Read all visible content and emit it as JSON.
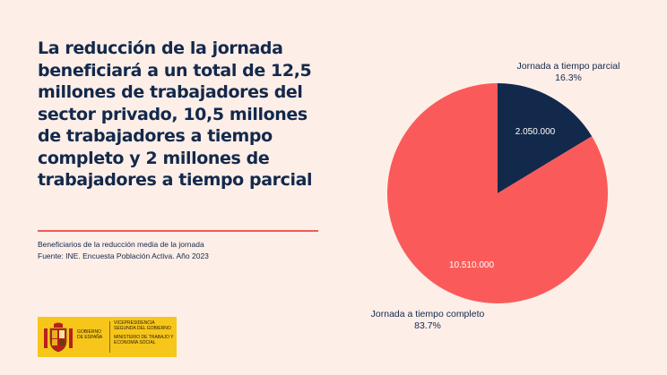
{
  "headline": "La reducción de la jornada beneficiará a un total de 12,5 millones de trabajadores del sector privado, 10,5 millones de trabajadores a tiempo completo y 2 millones de trabajadores a tiempo parcial",
  "source": {
    "line1": "Beneficiarios de la reducción media de la jornada",
    "line2": "Fuente: INE. Encuesta Población Activa. Año 2023"
  },
  "logo": {
    "government": "GOBIERNO DE ESPAÑA",
    "ministry_line1": "VICEPRESIDENCIA SEGUNDA DEL GOBIERNO",
    "ministry_line2": "MINISTERIO DE TRABAJO Y ECONOMÍA SOCIAL"
  },
  "colors": {
    "background": "#fdeee8",
    "navy": "#13294b",
    "coral": "#fa5b5a",
    "gold": "#f6c61a"
  },
  "chart_data": {
    "type": "pie",
    "title": "",
    "slices": [
      {
        "name": "Jornada a tiempo parcial",
        "value": 2050000,
        "value_label": "2.050.000",
        "percent": 16.3,
        "percent_label": "16.3%",
        "color": "#13294b",
        "value_text_color": "#ffffff"
      },
      {
        "name": "Jornada a tiempo completo",
        "value": 10510000,
        "value_label": "10.510.000",
        "percent": 83.7,
        "percent_label": "83.7%",
        "color": "#fa5b5a",
        "value_text_color": "#ffffff"
      }
    ],
    "legend": "none"
  }
}
